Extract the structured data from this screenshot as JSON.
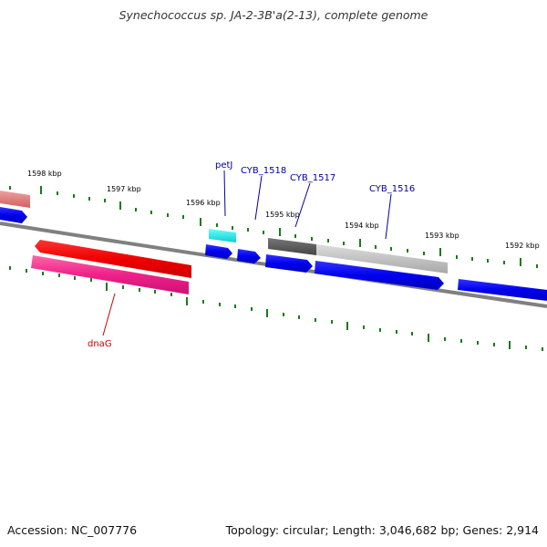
{
  "title": "Synechococcus sp. JA-2-3B'a(2-13), complete genome",
  "footer": {
    "accession": "Accession: NC_007776",
    "topology": "Topology: circular; Length: 3,046,682 bp; Genes: 2,914"
  },
  "scale": {
    "unit": "kbp",
    "tick_labels": [
      "1598 kbp",
      "1597 kbp",
      "1596 kbp",
      "1595 kbp",
      "1594 kbp",
      "1593 kbp",
      "1592 kbp"
    ]
  },
  "genes": [
    {
      "name": "petJ",
      "color": "#000099"
    },
    {
      "name": "CYB_1518",
      "color": "#000099"
    },
    {
      "name": "CYB_1517",
      "color": "#000099"
    },
    {
      "name": "CYB_1516",
      "color": "#000099"
    },
    {
      "name": "dnaG",
      "color": "#cc0000"
    }
  ],
  "colors": {
    "backbone": "#808080",
    "tick": "#1a7a1a",
    "forward_gene": "#0000ee",
    "rna_like": "#33eeee",
    "dnaG_outer": "#ee0000",
    "dnaG_inner": "#ee2288",
    "pink_partial": "#e88888",
    "dark_gray": "#555555",
    "light_gray": "#bbbbbb"
  }
}
